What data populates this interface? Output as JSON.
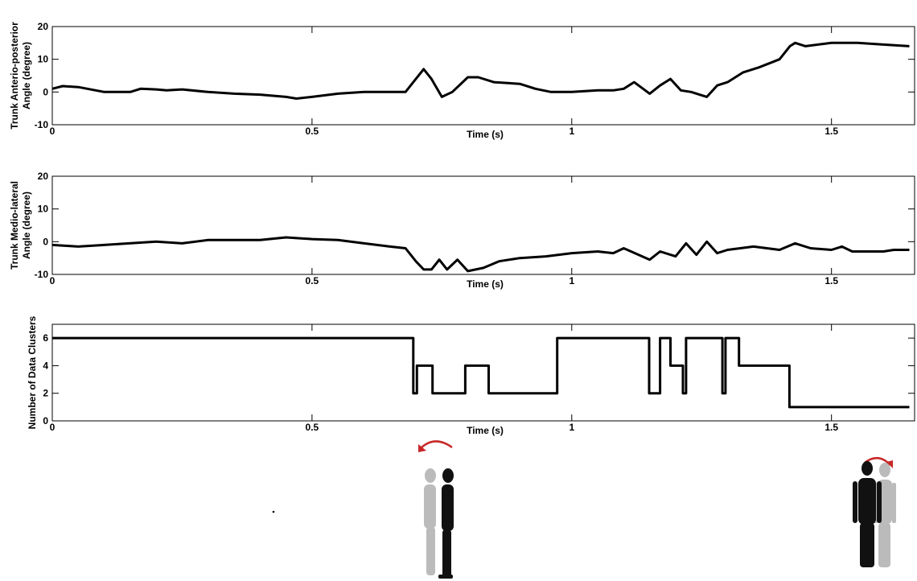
{
  "chart_data": [
    {
      "type": "line",
      "ylabel": [
        "Trunk Anterio-posterior",
        "Angle (degree)"
      ],
      "xlabel": "Time (s)",
      "xlim": [
        0,
        1.66
      ],
      "xticks": [
        0,
        0.5,
        1,
        1.5
      ],
      "ylim": [
        -10,
        20
      ],
      "yticks": [
        -10,
        0,
        10,
        20
      ],
      "series": [
        {
          "color": "#000000",
          "x": [
            0,
            0.02,
            0.05,
            0.1,
            0.15,
            0.17,
            0.2,
            0.22,
            0.25,
            0.3,
            0.35,
            0.4,
            0.45,
            0.47,
            0.5,
            0.55,
            0.6,
            0.68,
            0.7,
            0.715,
            0.73,
            0.75,
            0.77,
            0.8,
            0.82,
            0.85,
            0.9,
            0.93,
            0.96,
            1.0,
            1.05,
            1.08,
            1.1,
            1.12,
            1.15,
            1.17,
            1.19,
            1.21,
            1.23,
            1.26,
            1.28,
            1.3,
            1.33,
            1.36,
            1.4,
            1.42,
            1.43,
            1.45,
            1.5,
            1.55,
            1.6,
            1.65
          ],
          "values": [
            1,
            1.8,
            1.5,
            0,
            0,
            1,
            0.8,
            0.5,
            0.8,
            0,
            -0.5,
            -0.8,
            -1.5,
            -2,
            -1.5,
            -0.5,
            0,
            0,
            4,
            7,
            4,
            -1.5,
            0,
            4.5,
            4.5,
            3,
            2.5,
            1,
            0,
            0,
            0.5,
            0.5,
            1,
            3,
            -0.5,
            2,
            4,
            0.5,
            0,
            -1.5,
            2,
            3,
            6,
            7.5,
            10,
            14,
            15,
            14,
            15,
            15,
            14.5,
            14
          ]
        }
      ]
    },
    {
      "type": "line",
      "ylabel": [
        "Trunk Medio-lateral",
        "Angle (degree)"
      ],
      "xlabel": "Time (s)",
      "xlim": [
        0,
        1.66
      ],
      "xticks": [
        0,
        0.5,
        1,
        1.5
      ],
      "ylim": [
        -10,
        20
      ],
      "yticks": [
        -10,
        0,
        10,
        20
      ],
      "series": [
        {
          "color": "#000000",
          "x": [
            0,
            0.05,
            0.1,
            0.2,
            0.25,
            0.3,
            0.4,
            0.45,
            0.5,
            0.55,
            0.6,
            0.65,
            0.68,
            0.7,
            0.715,
            0.73,
            0.745,
            0.76,
            0.78,
            0.8,
            0.83,
            0.86,
            0.9,
            0.95,
            1.0,
            1.05,
            1.08,
            1.1,
            1.15,
            1.17,
            1.2,
            1.22,
            1.24,
            1.26,
            1.28,
            1.3,
            1.35,
            1.4,
            1.43,
            1.46,
            1.5,
            1.52,
            1.54,
            1.6,
            1.62,
            1.65
          ],
          "values": [
            -1,
            -1.5,
            -1,
            0,
            -0.5,
            0.5,
            0.5,
            1.3,
            0.8,
            0.5,
            -0.5,
            -1.5,
            -2,
            -6,
            -8.5,
            -8.5,
            -5.5,
            -8.5,
            -5.5,
            -9,
            -8,
            -6,
            -5,
            -4.5,
            -3.5,
            -3,
            -3.5,
            -2,
            -5.5,
            -3,
            -4.5,
            -0.5,
            -4,
            0,
            -3.5,
            -2.5,
            -1.5,
            -2.5,
            -0.5,
            -2,
            -2.5,
            -1.5,
            -3,
            -3,
            -2.5,
            -2.5
          ]
        }
      ]
    },
    {
      "type": "line",
      "ylabel": [
        "Number of Data Clusters"
      ],
      "xlabel": "Time (s)",
      "xlim": [
        0,
        1.66
      ],
      "xticks": [
        0,
        0.5,
        1,
        1.5
      ],
      "ylim": [
        0,
        7
      ],
      "yticks": [
        0,
        2,
        4,
        6
      ],
      "series": [
        {
          "color": "#000000",
          "x": [
            0,
            0.695,
            0.695,
            0.702,
            0.702,
            0.732,
            0.732,
            0.795,
            0.795,
            0.84,
            0.84,
            0.972,
            0.972,
            1.149,
            1.149,
            1.17,
            1.17,
            1.19,
            1.19,
            1.214,
            1.214,
            1.22,
            1.22,
            1.29,
            1.29,
            1.296,
            1.296,
            1.322,
            1.322,
            1.419,
            1.419,
            1.65
          ],
          "values": [
            6,
            6,
            2,
            2,
            4,
            4,
            2,
            2,
            4,
            4,
            2,
            2,
            6,
            6,
            2,
            2,
            6,
            6,
            4,
            4,
            2,
            2,
            6,
            6,
            2,
            2,
            6,
            6,
            4,
            4,
            1,
            1
          ]
        }
      ]
    }
  ]
}
